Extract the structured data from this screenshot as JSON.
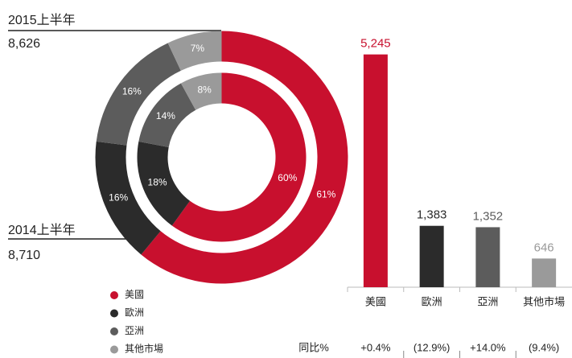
{
  "chart_data": [
    {
      "type": "donut",
      "name": "2015上半年",
      "total": "8,626",
      "categories": [
        "美國",
        "歐洲",
        "亞洲",
        "其他市場"
      ],
      "values": [
        61,
        16,
        16,
        7
      ],
      "value_labels": [
        "61%",
        "16%",
        "16%",
        "7%"
      ],
      "colors": [
        "#c8102e",
        "#2b2b2b",
        "#5c5c5c",
        "#9a9a9a"
      ]
    },
    {
      "type": "donut",
      "name": "2014上半年",
      "total": "8,710",
      "categories": [
        "美國",
        "歐洲",
        "亞洲",
        "其他市場"
      ],
      "values": [
        60,
        18,
        14,
        8
      ],
      "value_labels": [
        "60%",
        "18%",
        "14%",
        "8%"
      ],
      "colors": [
        "#c8102e",
        "#2b2b2b",
        "#5c5c5c",
        "#9a9a9a"
      ]
    },
    {
      "type": "bar",
      "categories": [
        "美國",
        "歐洲",
        "亞洲",
        "其他市場"
      ],
      "values": [
        5245,
        1383,
        1352,
        646
      ],
      "value_labels": [
        "5,245",
        "1,383",
        "1,352",
        "646"
      ],
      "colors": [
        "#c8102e",
        "#2b2b2b",
        "#5c5c5c",
        "#9a9a9a"
      ],
      "ylim": [
        0,
        6000
      ],
      "yoy_label": "同比%",
      "yoy": [
        "+0.4%",
        "(12.9%)",
        "+14.0%",
        "(9.4%)"
      ]
    }
  ]
}
